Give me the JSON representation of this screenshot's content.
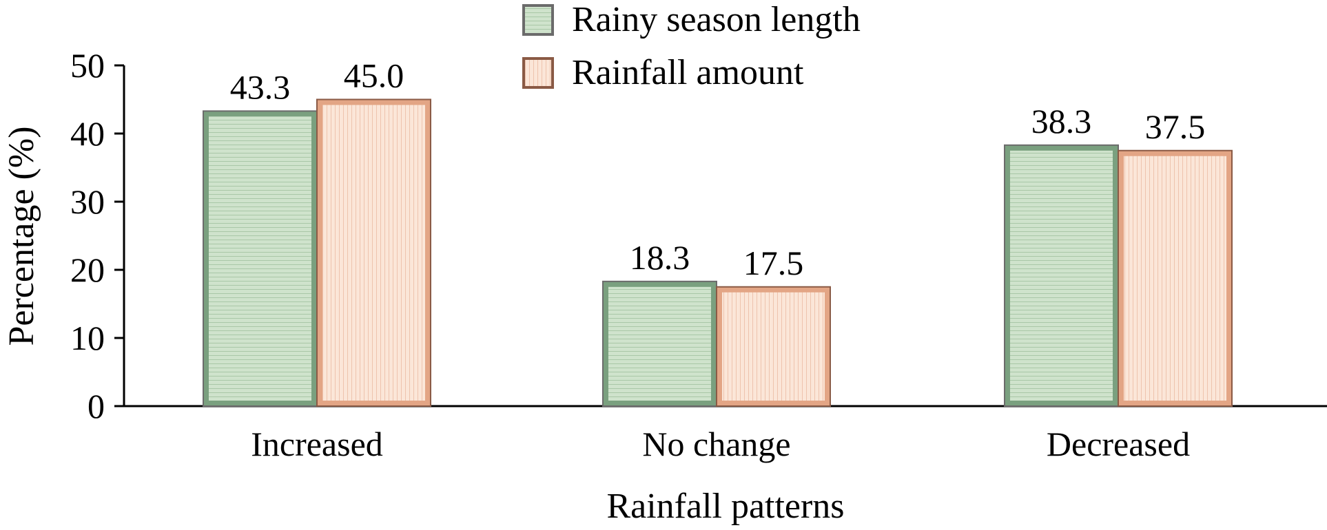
{
  "chart_data": {
    "type": "bar",
    "xlabel": "Rainfall patterns",
    "ylabel": "Percentage (%)",
    "ylim": [
      0,
      50
    ],
    "yticks": [
      0,
      10,
      20,
      30,
      40,
      50
    ],
    "categories": [
      "Increased",
      "No change",
      "Decreased"
    ],
    "series": [
      {
        "name": "Rainy season length",
        "values": [
          43.3,
          18.3,
          38.3
        ],
        "labels": [
          "43.3",
          "18.3",
          "38.3"
        ],
        "fill": "#cfe3cc",
        "fill_dark": "#7aa07f",
        "edge": "#6b6b6b"
      },
      {
        "name": "Rainfall amount",
        "values": [
          45.0,
          17.5,
          37.5
        ],
        "labels": [
          "45.0",
          "17.5",
          "37.5"
        ],
        "fill": "#fbe6d8",
        "fill_dark": "#e3a585",
        "edge": "#8a5a45"
      }
    ],
    "grid": false,
    "legend": "top-center"
  }
}
